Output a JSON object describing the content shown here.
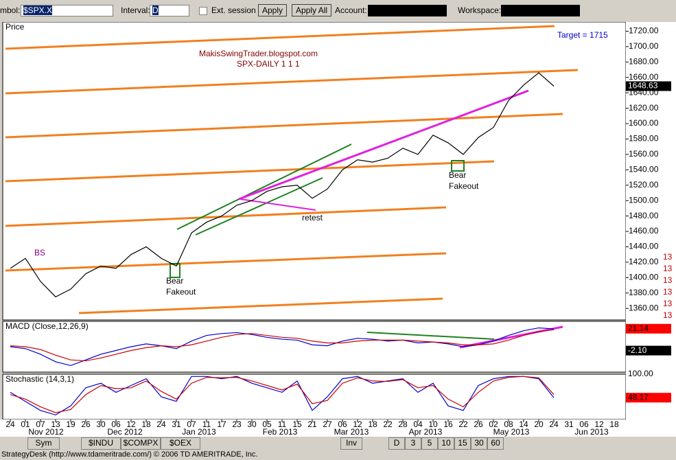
{
  "toolbar": {
    "symbol_label": "mbol:",
    "symbol": "$SPX.X",
    "interval_label": "Interval:",
    "interval": "D",
    "ext_session": "Ext. session",
    "apply": "Apply",
    "apply_all": "Apply All",
    "account_label": "Account:",
    "workspace_label": "Workspace:"
  },
  "chart_data": [
    {
      "type": "line",
      "title": "Price",
      "annotations": [
        "MakisSwingTrader.blogspot.com",
        "SPX-DAILY  1 1 1",
        "Target = 1715",
        "Bear",
        "Fakeout",
        "retest",
        "Bear",
        "Fakeout",
        "BS"
      ],
      "categories": [
        "24",
        "01",
        "07",
        "13",
        "19",
        "26",
        "30",
        "06",
        "12",
        "18",
        "24",
        "31",
        "07",
        "11",
        "17",
        "23",
        "30",
        "05",
        "11",
        "15",
        "21",
        "27",
        "06",
        "12",
        "18",
        "22",
        "28",
        "04",
        "10",
        "16",
        "22",
        "26",
        "02",
        "08",
        "14",
        "20",
        "24"
      ],
      "months": [
        "Nov 2012",
        "Dec 2012",
        "Jan 2013",
        "Feb 2013",
        "Mar 2013",
        "Apr 2013",
        "May 2013",
        "Jun 2013"
      ],
      "extra_ticks": [
        "31",
        "06",
        "12",
        "18"
      ],
      "series": [
        {
          "name": "Close",
          "color": "#000000",
          "values": [
            1412,
            1425,
            1395,
            1375,
            1385,
            1405,
            1415,
            1412,
            1430,
            1440,
            1425,
            1415,
            1458,
            1472,
            1480,
            1494,
            1500,
            1512,
            1518,
            1520,
            1503,
            1515,
            1540,
            1553,
            1550,
            1555,
            1568,
            1560,
            1585,
            1575,
            1560,
            1582,
            1595,
            1630,
            1650,
            1666,
            1648.63
          ]
        }
      ],
      "ylim": [
        1345,
        1732
      ],
      "yticks": [
        {
          "value": 1360,
          "label": "1360.00"
        },
        {
          "value": 1380,
          "label": "1380.00"
        },
        {
          "value": 1400,
          "label": "1400.00"
        },
        {
          "value": 1420,
          "label": "1420.00"
        },
        {
          "value": 1440,
          "label": "1440.00"
        },
        {
          "value": 1460,
          "label": "1460.00"
        },
        {
          "value": 1480,
          "label": "1480.00"
        },
        {
          "value": 1500,
          "label": "1500.00"
        },
        {
          "value": 1520,
          "label": "1520.00"
        },
        {
          "value": 1540,
          "label": "1540.00"
        },
        {
          "value": 1560,
          "label": "1560.00"
        },
        {
          "value": 1580,
          "label": "1580.00"
        },
        {
          "value": 1600,
          "label": "1600.00"
        },
        {
          "value": 1620,
          "label": "1620.00"
        },
        {
          "value": 1640,
          "label": "1640.00"
        },
        {
          "value": 1660,
          "label": "1660.00"
        },
        {
          "value": 1680,
          "label": "1680.00"
        },
        {
          "value": 1700,
          "label": "1700.00"
        },
        {
          "value": 1720,
          "label": "1720.00"
        }
      ],
      "readouts": [
        {
          "value": 1648.63,
          "label": "1648.63",
          "color": "#000000"
        }
      ],
      "cut_labels": [
        "13",
        "13",
        "13",
        "13",
        "13",
        "13"
      ]
    },
    {
      "type": "line",
      "title": "MACD (Close,12,26,9)",
      "ylim": [
        -25,
        29
      ],
      "series": [
        {
          "name": "MACD",
          "color": "#0000cc",
          "values": [
            2,
            0,
            -6,
            -14,
            -18,
            -12,
            -6,
            -2,
            2,
            5,
            3,
            0,
            8,
            14,
            16,
            17,
            15,
            12,
            10,
            9,
            4,
            3,
            8,
            11,
            10,
            8,
            9,
            6,
            7,
            5,
            2,
            4,
            8,
            14,
            19,
            22,
            21
          ]
        },
        {
          "name": "Signal",
          "color": "#cc0000",
          "values": [
            3,
            2,
            -1,
            -7,
            -12,
            -13,
            -10,
            -6,
            -2,
            1,
            3,
            2,
            4,
            8,
            12,
            15,
            16,
            14,
            12,
            11,
            8,
            6,
            6,
            8,
            9,
            9,
            9,
            8,
            7,
            6,
            4,
            4,
            5,
            9,
            14,
            18,
            20
          ]
        }
      ],
      "readouts": [
        {
          "value": 21.14,
          "label": "21.14",
          "color": "#ff0000"
        },
        {
          "value": -2.1,
          "label": "-2.10",
          "color": "#000000"
        }
      ]
    },
    {
      "type": "line",
      "title": "Stochastic (14,3,1)",
      "ylim": [
        0,
        100
      ],
      "series": [
        {
          "name": "%K",
          "color": "#0000cc",
          "values": [
            60,
            40,
            20,
            10,
            30,
            70,
            80,
            60,
            75,
            90,
            50,
            40,
            95,
            95,
            90,
            95,
            80,
            70,
            60,
            85,
            20,
            50,
            90,
            95,
            80,
            85,
            90,
            60,
            80,
            30,
            20,
            75,
            90,
            95,
            95,
            90,
            48.17
          ]
        },
        {
          "name": "%D",
          "color": "#cc0000",
          "values": [
            55,
            45,
            28,
            15,
            22,
            55,
            75,
            68,
            70,
            85,
            62,
            45,
            80,
            93,
            92,
            93,
            85,
            75,
            65,
            78,
            35,
            42,
            80,
            92,
            85,
            84,
            88,
            70,
            75,
            45,
            28,
            60,
            85,
            93,
            95,
            92,
            55
          ]
        }
      ],
      "readouts": [
        {
          "value": 100,
          "label": "100.00",
          "color": "#ffffff"
        },
        {
          "value": 48.17,
          "label": "48.17",
          "color": "#ff0000"
        }
      ]
    }
  ],
  "tabs": {
    "sym": "Sym",
    "symbols": [
      "$INDU",
      "$COMPX",
      "$OEX"
    ],
    "inv": "Inv",
    "intervals": [
      "D",
      "3",
      "5",
      "10",
      "15",
      "30",
      "60"
    ]
  },
  "status": "StrategyDesk (http://www.tdameritrade.com/) © 2006 TD AMERITRADE, Inc."
}
